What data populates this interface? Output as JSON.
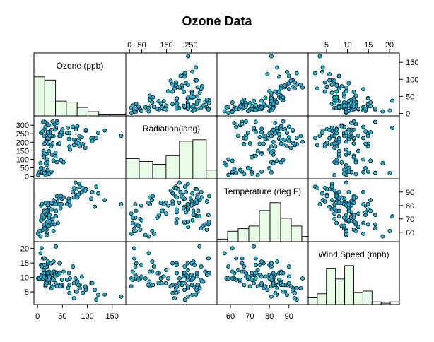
{
  "chart_data": {
    "type": "scatter",
    "title": "Ozone Data",
    "variables": [
      {
        "label": "Ozone (ppb)",
        "range": [
          0,
          170
        ],
        "ticks": [
          0,
          50,
          100,
          150
        ]
      },
      {
        "label": "Radiation(lang)",
        "range": [
          0,
          340
        ],
        "ticks": [
          0,
          50,
          100,
          150,
          200,
          250,
          300
        ]
      },
      {
        "label": "Temperature (deg F)",
        "range": [
          55,
          98
        ],
        "ticks": [
          60,
          70,
          80,
          90
        ]
      },
      {
        "label": "Wind Speed (mph)",
        "range": [
          1.5,
          21.5
        ],
        "ticks": [
          5,
          10,
          15,
          20
        ]
      }
    ],
    "axes": {
      "top": [
        {
          "col": 1,
          "ticks": [
            "0",
            "50",
            "150",
            "250"
          ]
        },
        {
          "col": 3,
          "ticks": [
            "5",
            "10",
            "15",
            "20"
          ]
        }
      ],
      "bottom": [
        {
          "col": 0,
          "ticks": [
            "0",
            "50",
            "100",
            "150"
          ]
        },
        {
          "col": 2,
          "ticks": [
            "60",
            "70",
            "80",
            "90"
          ]
        }
      ],
      "left": [
        {
          "row": 1,
          "ticks": [
            "0",
            "50",
            "100",
            "150",
            "200",
            "250",
            "300"
          ]
        },
        {
          "row": 3,
          "ticks": [
            "5",
            "10",
            "15",
            "20"
          ]
        }
      ],
      "right": [
        {
          "row": 0,
          "ticks": [
            "0",
            "50",
            "100",
            "150"
          ]
        },
        {
          "row": 2,
          "ticks": [
            "60",
            "70",
            "80",
            "90"
          ]
        }
      ]
    },
    "histograms": [
      {
        "var": 0,
        "edges": [
          0,
          20,
          40,
          60,
          80,
          100,
          120,
          140,
          170
        ],
        "counts": [
          37,
          34,
          14,
          13,
          8,
          4,
          1,
          1
        ]
      },
      {
        "var": 1,
        "edges": [
          0,
          50,
          100,
          150,
          200,
          250,
          300,
          340
        ],
        "counts": [
          14,
          12,
          10,
          16,
          26,
          27,
          6
        ]
      },
      {
        "var": 2,
        "edges": [
          55,
          60,
          65,
          70,
          75,
          80,
          85,
          90,
          95,
          98
        ],
        "counts": [
          2,
          8,
          10,
          12,
          24,
          30,
          18,
          12,
          4
        ]
      },
      {
        "var": 3,
        "edges": [
          1.5,
          3.5,
          5.5,
          7.5,
          9.5,
          11.5,
          13.5,
          15.5,
          17.5,
          19.5,
          21.5
        ],
        "counts": [
          5,
          8,
          27,
          19,
          29,
          9,
          10,
          2,
          1,
          2
        ]
      }
    ],
    "records": [
      [
        41,
        190,
        67,
        7.4
      ],
      [
        36,
        118,
        72,
        8.0
      ],
      [
        12,
        149,
        74,
        12.6
      ],
      [
        18,
        313,
        62,
        11.5
      ],
      [
        28,
        27,
        66,
        14.9
      ],
      [
        23,
        299,
        65,
        8.6
      ],
      [
        19,
        99,
        59,
        13.8
      ],
      [
        8,
        19,
        61,
        20.1
      ],
      [
        7,
        256,
        69,
        9.7
      ],
      [
        16,
        290,
        63,
        9.2
      ],
      [
        11,
        44,
        70,
        9.7
      ],
      [
        14,
        320,
        66,
        16.6
      ],
      [
        18,
        65,
        58,
        9.7
      ],
      [
        14,
        274,
        72,
        10.9
      ],
      [
        34,
        307,
        66,
        12.0
      ],
      [
        6,
        78,
        57,
        18.4
      ],
      [
        30,
        322,
        68,
        11.5
      ],
      [
        11,
        44,
        62,
        9.7
      ],
      [
        1,
        8,
        59,
        9.7
      ],
      [
        11,
        320,
        73,
        16.6
      ],
      [
        4,
        25,
        61,
        9.7
      ],
      [
        32,
        92,
        61,
        12.0
      ],
      [
        23,
        13,
        67,
        12.0
      ],
      [
        45,
        252,
        81,
        14.9
      ],
      [
        115,
        223,
        79,
        5.7
      ],
      [
        37,
        279,
        76,
        7.4
      ],
      [
        29,
        127,
        82,
        9.7
      ],
      [
        71,
        291,
        90,
        13.8
      ],
      [
        39,
        323,
        87,
        11.5
      ],
      [
        23,
        148,
        82,
        8.0
      ],
      [
        21,
        191,
        77,
        14.9
      ],
      [
        37,
        284,
        72,
        20.7
      ],
      [
        20,
        37,
        65,
        9.2
      ],
      [
        12,
        120,
        73,
        11.5
      ],
      [
        13,
        137,
        76,
        10.3
      ],
      [
        135,
        269,
        84,
        4.1
      ],
      [
        49,
        248,
        85,
        9.2
      ],
      [
        32,
        236,
        81,
        9.2
      ],
      [
        64,
        175,
        83,
        4.6
      ],
      [
        40,
        314,
        83,
        10.9
      ],
      [
        77,
        276,
        88,
        5.1
      ],
      [
        97,
        267,
        92,
        6.3
      ],
      [
        97,
        272,
        92,
        5.7
      ],
      [
        85,
        175,
        89,
        7.4
      ],
      [
        10,
        264,
        73,
        14.3
      ],
      [
        27,
        175,
        81,
        14.9
      ],
      [
        7,
        48,
        80,
        14.3
      ],
      [
        48,
        260,
        81,
        6.9
      ],
      [
        35,
        274,
        82,
        10.3
      ],
      [
        61,
        285,
        84,
        6.3
      ],
      [
        79,
        187,
        87,
        5.1
      ],
      [
        63,
        220,
        85,
        11.5
      ],
      [
        16,
        7,
        74,
        6.9
      ],
      [
        80,
        294,
        86,
        8.6
      ],
      [
        108,
        223,
        85,
        8.0
      ],
      [
        20,
        81,
        82,
        8.6
      ],
      [
        52,
        82,
        86,
        12.0
      ],
      [
        82,
        213,
        88,
        7.4
      ],
      [
        50,
        275,
        86,
        7.4
      ],
      [
        64,
        253,
        83,
        7.4
      ],
      [
        59,
        254,
        81,
        9.2
      ],
      [
        39,
        83,
        81,
        6.9
      ],
      [
        9,
        24,
        81,
        13.8
      ],
      [
        16,
        77,
        82,
        7.4
      ],
      [
        122,
        255,
        89,
        4.0
      ],
      [
        89,
        229,
        90,
        10.3
      ],
      [
        110,
        207,
        90,
        8.0
      ],
      [
        44,
        192,
        86,
        11.5
      ],
      [
        28,
        273,
        82,
        11.5
      ],
      [
        65,
        157,
        80,
        9.7
      ],
      [
        168,
        238,
        81,
        3.4
      ],
      [
        73,
        215,
        86,
        8.0
      ],
      [
        76,
        203,
        97,
        9.7
      ],
      [
        118,
        225,
        94,
        2.3
      ],
      [
        84,
        237,
        96,
        6.3
      ],
      [
        85,
        188,
        94,
        6.3
      ],
      [
        96,
        167,
        91,
        6.9
      ],
      [
        78,
        197,
        92,
        5.1
      ],
      [
        73,
        183,
        93,
        2.8
      ],
      [
        91,
        189,
        93,
        4.6
      ],
      [
        47,
        95,
        87,
        7.4
      ],
      [
        32,
        92,
        84,
        15.5
      ],
      [
        20,
        252,
        80,
        10.9
      ],
      [
        23,
        220,
        78,
        10.3
      ],
      [
        21,
        230,
        75,
        10.9
      ],
      [
        24,
        259,
        73,
        9.7
      ],
      [
        44,
        236,
        81,
        14.9
      ],
      [
        21,
        259,
        76,
        15.5
      ],
      [
        28,
        238,
        77,
        6.3
      ],
      [
        9,
        24,
        71,
        10.9
      ],
      [
        13,
        112,
        71,
        11.5
      ],
      [
        46,
        237,
        78,
        6.9
      ],
      [
        18,
        224,
        67,
        13.8
      ],
      [
        13,
        27,
        76,
        10.3
      ],
      [
        24,
        238,
        68,
        10.3
      ],
      [
        16,
        201,
        82,
        8.0
      ],
      [
        13,
        238,
        64,
        12.6
      ],
      [
        23,
        14,
        71,
        9.2
      ],
      [
        36,
        139,
        81,
        10.3
      ],
      [
        7,
        49,
        69,
        10.3
      ],
      [
        14,
        20,
        63,
        16.6
      ],
      [
        30,
        193,
        70,
        6.9
      ],
      [
        14,
        191,
        75,
        14.3
      ],
      [
        18,
        131,
        76,
        8.0
      ],
      [
        20,
        223,
        68,
        11.5
      ]
    ]
  }
}
